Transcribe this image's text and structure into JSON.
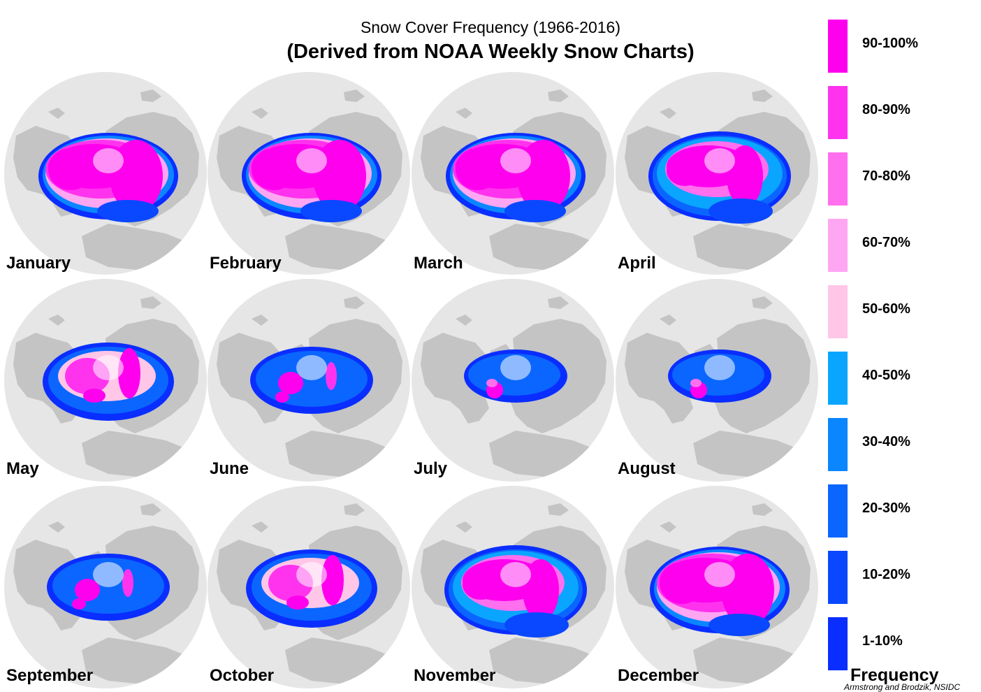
{
  "title": "Snow Cover Frequency (1966-2016)",
  "subtitle": "(Derived from NOAA Weekly Snow Charts)",
  "colors": {
    "ocean": "#e6e6e6",
    "land": "#c4c4c4",
    "background": "#ffffff"
  },
  "months": [
    {
      "name": "January",
      "snow_extent": "very-high"
    },
    {
      "name": "February",
      "snow_extent": "very-high"
    },
    {
      "name": "March",
      "snow_extent": "very-high"
    },
    {
      "name": "April",
      "snow_extent": "high"
    },
    {
      "name": "May",
      "snow_extent": "medium"
    },
    {
      "name": "June",
      "snow_extent": "low"
    },
    {
      "name": "July",
      "snow_extent": "minimal"
    },
    {
      "name": "August",
      "snow_extent": "minimal"
    },
    {
      "name": "September",
      "snow_extent": "low"
    },
    {
      "name": "October",
      "snow_extent": "medium"
    },
    {
      "name": "November",
      "snow_extent": "high"
    },
    {
      "name": "December",
      "snow_extent": "very-high"
    }
  ],
  "legend": {
    "title": "Frequency",
    "items": [
      {
        "label": "90-100%",
        "color": "#ff00ee"
      },
      {
        "label": "80-90%",
        "color": "#ff33ee"
      },
      {
        "label": "70-80%",
        "color": "#ff6fee"
      },
      {
        "label": "60-70%",
        "color": "#ffa6f3"
      },
      {
        "label": "50-60%",
        "color": "#ffc6e8"
      },
      {
        "label": "40-50%",
        "color": "#0aa5ff"
      },
      {
        "label": "30-40%",
        "color": "#0a86ff"
      },
      {
        "label": "20-30%",
        "color": "#0a66ff"
      },
      {
        "label": "10-20%",
        "color": "#0a48ff"
      },
      {
        "label": "1-10%",
        "color": "#0a2eff"
      }
    ]
  },
  "credit": "Armstrong and Brodzik, NSIDC"
}
